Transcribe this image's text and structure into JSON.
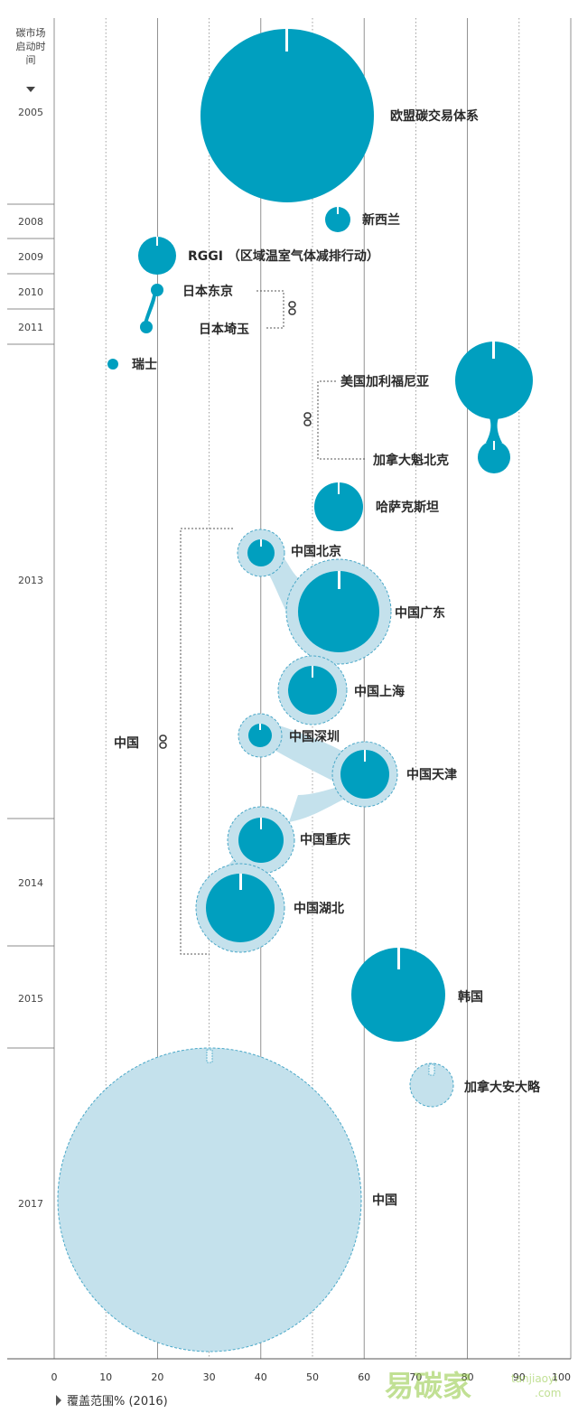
{
  "header": {
    "line1": "碳市场",
    "line2": "启动时",
    "line3": "间"
  },
  "chart_data": {
    "type": "scatter",
    "xlabel": "覆盖范围% (2016)",
    "xlim": [
      0,
      100
    ],
    "xticks": [
      "0",
      "10",
      "20",
      "30",
      "40",
      "50",
      "60",
      "70",
      "80",
      "90",
      "100"
    ],
    "years": [
      "2005",
      "2008",
      "2009",
      "2010",
      "2011",
      "2013",
      "2014",
      "2015",
      "2017"
    ],
    "series": [
      {
        "name": "欧盟碳交易体系",
        "year": "2005",
        "x": 45
      },
      {
        "name": "新西兰",
        "year": "2008",
        "x": 55
      },
      {
        "name": "RGGI （区域温室气体减排行动）",
        "year": "2009",
        "x": 20
      },
      {
        "name": "日本东京",
        "year": "2010",
        "x": 20
      },
      {
        "name": "日本埼玉",
        "year": "2011",
        "x": 18
      },
      {
        "name": "瑞士",
        "year": "2013",
        "x": 11
      },
      {
        "name": "美国加利福尼亚",
        "year": "2013",
        "x": 85
      },
      {
        "name": "加拿大魁北克",
        "year": "2013",
        "x": 85
      },
      {
        "name": "哈萨克斯坦",
        "year": "2013",
        "x": 55
      },
      {
        "name": "中国北京",
        "year": "2013",
        "x": 40
      },
      {
        "name": "中国广东",
        "year": "2013",
        "x": 55
      },
      {
        "name": "中国上海",
        "year": "2013",
        "x": 50
      },
      {
        "name": "中国深圳",
        "year": "2013",
        "x": 40
      },
      {
        "name": "中国天津",
        "year": "2013",
        "x": 60
      },
      {
        "name": "中国重庆",
        "year": "2014",
        "x": 40
      },
      {
        "name": "中国湖北",
        "year": "2014",
        "x": 36
      },
      {
        "name": "韩国",
        "year": "2015",
        "x": 67
      },
      {
        "name": "加拿大安大略",
        "year": "2017",
        "x": 73
      },
      {
        "name": "中国",
        "year": "2017",
        "x": 30
      }
    ],
    "group_label": "中国",
    "colors": {
      "primary": "#009fbf",
      "light": "#c4e1ec",
      "dashed": "#4aa8c8",
      "grid": "#555555"
    }
  },
  "watermark": {
    "brand": "易碳家",
    "url": "tanjiaoyi",
    "domain": ".com"
  }
}
